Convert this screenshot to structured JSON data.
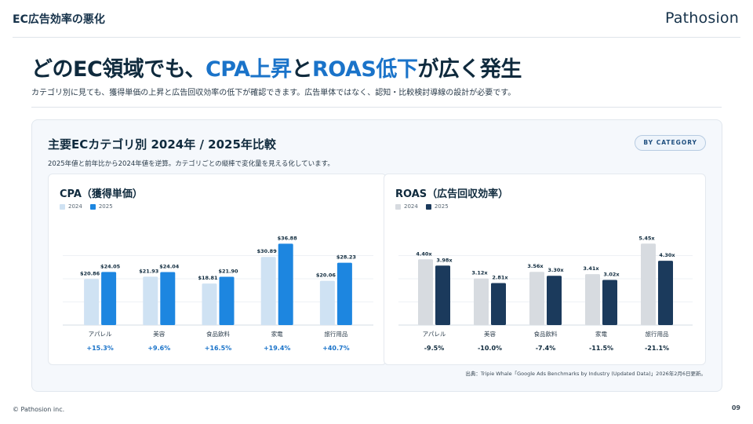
{
  "header": {
    "deck_title": "EC広告効率の悪化",
    "brand": "Pathosion"
  },
  "headline": {
    "part1": "どのEC領域でも、",
    "hl1": "CPA上昇",
    "part2": "と",
    "hl2": "ROAS低下",
    "part3": "が広く発生"
  },
  "subline": "カテゴリ別に見ても、獲得単価の上昇と広告回収効率の低下が確認できます。広告単体ではなく、認知・比較検討導線の設計が必要です。",
  "panel": {
    "title": "主要ECカテゴリ別 2024年 / 2025年比較",
    "subtitle": "2025年値と前年比から2024年値を逆算。カテゴリごとの縦棒で変化量を見える化しています。",
    "badge": "BY CATEGORY",
    "source": "出典：Tripie Whale「Google Ads Benchmarks by Industry (Updated Data)」2026年2月6日更新。"
  },
  "colors": {
    "cpa2024": "#cfe2f3",
    "cpa2025": "#1d86e0",
    "roas2024": "#d7dbe0",
    "roas2025": "#1b3a5c",
    "changeCpa": "#1a73c9",
    "changeRoas": "#0f2a3d"
  },
  "chart_data": [
    {
      "type": "bar",
      "title": "CPA（獲得単価）",
      "categories": [
        "アパレル",
        "美容",
        "食品飲料",
        "家電",
        "旅行用品"
      ],
      "series": [
        {
          "name": "2024",
          "values": [
            20.86,
            21.93,
            18.81,
            30.89,
            20.06
          ],
          "labels": [
            "$20.86",
            "$21.93",
            "$18.81",
            "$30.89",
            "$20.06"
          ]
        },
        {
          "name": "2025",
          "values": [
            24.05,
            24.04,
            21.9,
            36.88,
            28.23
          ],
          "labels": [
            "$24.05",
            "$24.04",
            "$21.90",
            "$36.88",
            "$28.23"
          ]
        }
      ],
      "changes": [
        "+15.3%",
        "+9.6%",
        "+16.5%",
        "+19.4%",
        "+40.7%"
      ],
      "ylim": [
        0,
        42
      ]
    },
    {
      "type": "bar",
      "title": "ROAS（広告回収効率）",
      "categories": [
        "アパレル",
        "美容",
        "食品飲料",
        "家電",
        "旅行用品"
      ],
      "series": [
        {
          "name": "2024",
          "values": [
            4.4,
            3.12,
            3.56,
            3.41,
            5.45
          ],
          "labels": [
            "4.40x",
            "3.12x",
            "3.56x",
            "3.41x",
            "5.45x"
          ]
        },
        {
          "name": "2025",
          "values": [
            3.98,
            2.81,
            3.3,
            3.02,
            4.3
          ],
          "labels": [
            "3.98x",
            "2.81x",
            "3.30x",
            "3.02x",
            "4.30x"
          ]
        }
      ],
      "changes": [
        "-9.5%",
        "-10.0%",
        "-7.4%",
        "-11.5%",
        "-21.1%"
      ],
      "ylim": [
        0,
        6.2
      ]
    }
  ],
  "footer": {
    "copyright": "© Pathosion inc.",
    "page": "09"
  }
}
